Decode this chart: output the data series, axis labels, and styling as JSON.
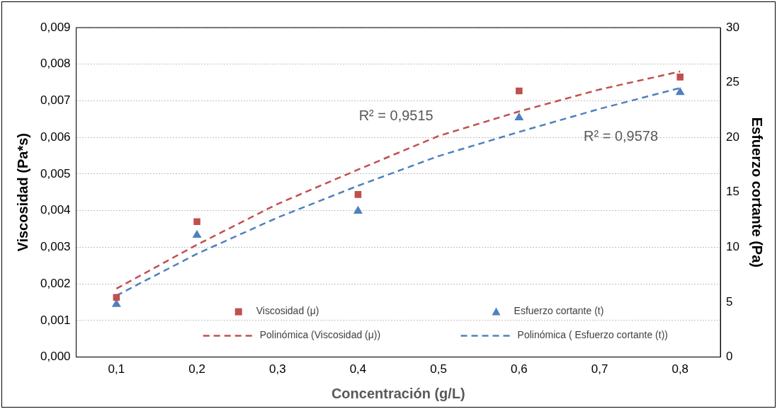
{
  "chart_data": {
    "type": "scatter",
    "xlabel": "Concentración (g/L)",
    "ylabel": "Viscosidad (Pa*s)",
    "y2label": "Esfuerzo cortante (Pa)",
    "xlim": [
      0.05,
      0.85
    ],
    "xticks": [
      {
        "value": 0.1,
        "label": "0,1"
      },
      {
        "value": 0.2,
        "label": "0,2"
      },
      {
        "value": 0.3,
        "label": "0,3"
      },
      {
        "value": 0.4,
        "label": "0,4"
      },
      {
        "value": 0.5,
        "label": "0,5"
      },
      {
        "value": 0.6,
        "label": "0,6"
      },
      {
        "value": 0.7,
        "label": "0,7"
      },
      {
        "value": 0.8,
        "label": "0,8"
      }
    ],
    "ylim": [
      0,
      0.009
    ],
    "yticks": [
      {
        "value": 0,
        "label": "0,000"
      },
      {
        "value": 0.001,
        "label": "0,001"
      },
      {
        "value": 0.002,
        "label": "0,002"
      },
      {
        "value": 0.003,
        "label": "0,003"
      },
      {
        "value": 0.004,
        "label": "0,004"
      },
      {
        "value": 0.005,
        "label": "0,005"
      },
      {
        "value": 0.006,
        "label": "0,006"
      },
      {
        "value": 0.007,
        "label": "0,007"
      },
      {
        "value": 0.008,
        "label": "0,008"
      },
      {
        "value": 0.009,
        "label": "0,009"
      }
    ],
    "y2lim": [
      0,
      30
    ],
    "y2ticks": [
      0,
      5,
      10,
      15,
      20,
      25,
      30
    ],
    "grid": "y",
    "legend": "bottom",
    "series": [
      {
        "name": "Viscosidad (μ)",
        "marker": "square",
        "color": "#c0504d",
        "x": [
          0.1,
          0.2,
          0.4,
          0.6,
          0.8
        ],
        "values": [
          0.00163,
          0.0037,
          0.00444,
          0.00727,
          0.00765
        ]
      },
      {
        "name": "Esfuerzo cortante (t)",
        "marker": "triangle",
        "color": "#4f81bd",
        "axis": "y2",
        "x": [
          0.1,
          0.2,
          0.4,
          0.6,
          0.8
        ],
        "values": [
          4.8,
          11.1,
          13.3,
          21.8,
          24.1
        ]
      },
      {
        "name": "Polinómica (Viscosidad (μ))",
        "type": "line",
        "marker": "none",
        "line_style": "dashed",
        "color": "#c0504d",
        "x": [
          0.1,
          0.2,
          0.3,
          0.4,
          0.5,
          0.6,
          0.7,
          0.8
        ],
        "values": [
          0.00187,
          0.00307,
          0.00418,
          0.00512,
          0.00604,
          0.00671,
          0.00731,
          0.0078
        ]
      },
      {
        "name": "Polinómica ( Esfuerzo cortante (t))",
        "type": "line",
        "marker": "none",
        "line_style": "dashed",
        "color": "#4f81bd",
        "axis": "y2",
        "x": [
          0.1,
          0.2,
          0.3,
          0.4,
          0.5,
          0.6,
          0.7,
          0.8
        ],
        "values": [
          5.6,
          9.4,
          12.7,
          15.6,
          18.3,
          20.5,
          22.6,
          24.5
        ]
      }
    ],
    "annotations": [
      "R² = 0,9515",
      "R² = 0,9578"
    ]
  }
}
